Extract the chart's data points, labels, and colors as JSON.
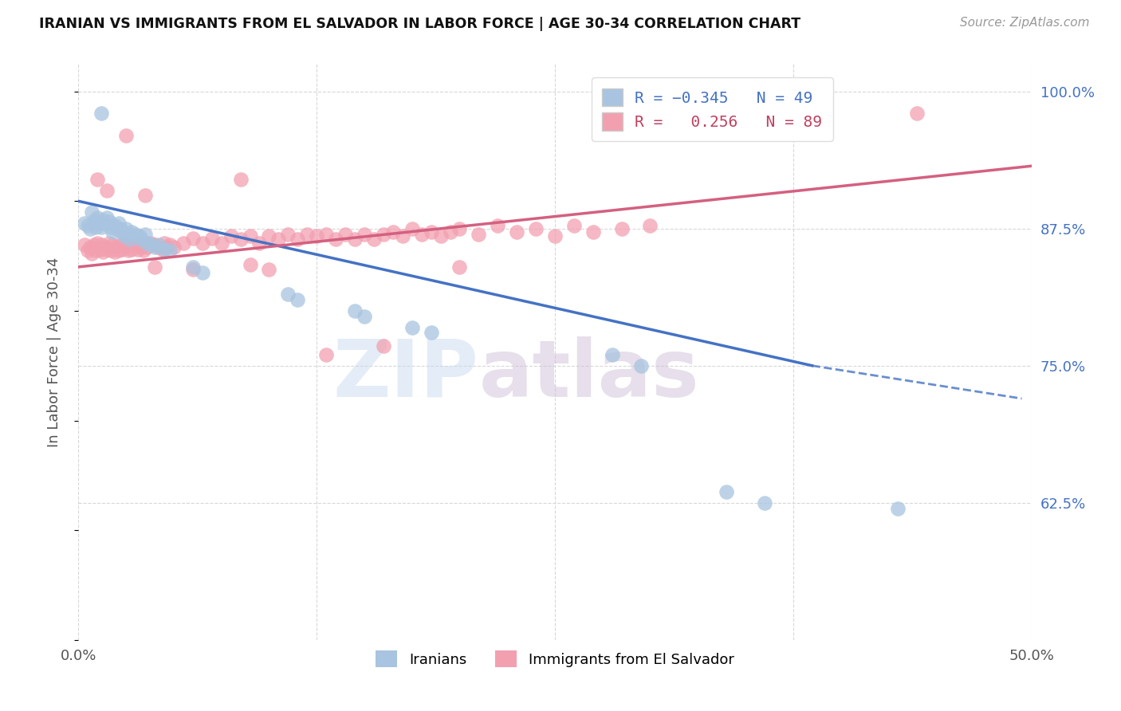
{
  "title": "IRANIAN VS IMMIGRANTS FROM EL SALVADOR IN LABOR FORCE | AGE 30-34 CORRELATION CHART",
  "source": "Source: ZipAtlas.com",
  "ylabel": "In Labor Force | Age 30-34",
  "xlim": [
    0.0,
    0.5
  ],
  "ylim": [
    0.5,
    1.025
  ],
  "xticks": [
    0.0,
    0.1,
    0.2,
    0.3,
    0.4,
    0.5
  ],
  "xticklabels": [
    "0.0%",
    "",
    "",
    "",
    "",
    "50.0%"
  ],
  "yticks_right": [
    0.625,
    0.75,
    0.875,
    1.0
  ],
  "yticklabels_right": [
    "62.5%",
    "75.0%",
    "87.5%",
    "100.0%"
  ],
  "blue_color": "#a8c4e0",
  "pink_color": "#f2a0b0",
  "blue_line_color": "#4472c4",
  "pink_line_color": "#d46080",
  "background_color": "#ffffff",
  "grid_color": "#d8d8d8",
  "blue_scatter": [
    [
      0.003,
      0.88
    ],
    [
      0.005,
      0.878
    ],
    [
      0.006,
      0.875
    ],
    [
      0.007,
      0.89
    ],
    [
      0.008,
      0.882
    ],
    [
      0.009,
      0.876
    ],
    [
      0.01,
      0.885
    ],
    [
      0.011,
      0.88
    ],
    [
      0.012,
      0.876
    ],
    [
      0.013,
      0.883
    ],
    [
      0.014,
      0.879
    ],
    [
      0.015,
      0.885
    ],
    [
      0.016,
      0.881
    ],
    [
      0.017,
      0.876
    ],
    [
      0.018,
      0.872
    ],
    [
      0.019,
      0.878
    ],
    [
      0.02,
      0.875
    ],
    [
      0.021,
      0.88
    ],
    [
      0.022,
      0.875
    ],
    [
      0.023,
      0.872
    ],
    [
      0.024,
      0.868
    ],
    [
      0.025,
      0.875
    ],
    [
      0.026,
      0.87
    ],
    [
      0.027,
      0.865
    ],
    [
      0.028,
      0.872
    ],
    [
      0.03,
      0.87
    ],
    [
      0.032,
      0.868
    ],
    [
      0.033,
      0.865
    ],
    [
      0.035,
      0.87
    ],
    [
      0.036,
      0.862
    ],
    [
      0.038,
      0.86
    ],
    [
      0.04,
      0.858
    ],
    [
      0.042,
      0.86
    ],
    [
      0.045,
      0.856
    ],
    [
      0.048,
      0.855
    ],
    [
      0.012,
      0.98
    ],
    [
      0.06,
      0.84
    ],
    [
      0.065,
      0.835
    ],
    [
      0.11,
      0.815
    ],
    [
      0.115,
      0.81
    ],
    [
      0.145,
      0.8
    ],
    [
      0.15,
      0.795
    ],
    [
      0.175,
      0.785
    ],
    [
      0.185,
      0.78
    ],
    [
      0.28,
      0.76
    ],
    [
      0.295,
      0.75
    ],
    [
      0.34,
      0.635
    ],
    [
      0.36,
      0.625
    ],
    [
      0.43,
      0.62
    ]
  ],
  "pink_scatter": [
    [
      0.003,
      0.86
    ],
    [
      0.005,
      0.855
    ],
    [
      0.006,
      0.858
    ],
    [
      0.007,
      0.852
    ],
    [
      0.008,
      0.86
    ],
    [
      0.009,
      0.855
    ],
    [
      0.01,
      0.862
    ],
    [
      0.011,
      0.856
    ],
    [
      0.012,
      0.86
    ],
    [
      0.013,
      0.854
    ],
    [
      0.014,
      0.858
    ],
    [
      0.015,
      0.856
    ],
    [
      0.016,
      0.862
    ],
    [
      0.017,
      0.855
    ],
    [
      0.018,
      0.86
    ],
    [
      0.019,
      0.854
    ],
    [
      0.02,
      0.858
    ],
    [
      0.021,
      0.855
    ],
    [
      0.022,
      0.86
    ],
    [
      0.023,
      0.856
    ],
    [
      0.024,
      0.862
    ],
    [
      0.025,
      0.858
    ],
    [
      0.026,
      0.855
    ],
    [
      0.027,
      0.86
    ],
    [
      0.028,
      0.856
    ],
    [
      0.03,
      0.862
    ],
    [
      0.031,
      0.856
    ],
    [
      0.032,
      0.86
    ],
    [
      0.033,
      0.858
    ],
    [
      0.034,
      0.855
    ],
    [
      0.035,
      0.862
    ],
    [
      0.036,
      0.858
    ],
    [
      0.038,
      0.862
    ],
    [
      0.04,
      0.86
    ],
    [
      0.042,
      0.858
    ],
    [
      0.044,
      0.856
    ],
    [
      0.045,
      0.862
    ],
    [
      0.046,
      0.858
    ],
    [
      0.048,
      0.86
    ],
    [
      0.05,
      0.858
    ],
    [
      0.055,
      0.862
    ],
    [
      0.06,
      0.866
    ],
    [
      0.065,
      0.862
    ],
    [
      0.07,
      0.866
    ],
    [
      0.075,
      0.862
    ],
    [
      0.08,
      0.868
    ],
    [
      0.085,
      0.865
    ],
    [
      0.09,
      0.868
    ],
    [
      0.095,
      0.862
    ],
    [
      0.1,
      0.868
    ],
    [
      0.105,
      0.865
    ],
    [
      0.11,
      0.87
    ],
    [
      0.115,
      0.865
    ],
    [
      0.12,
      0.87
    ],
    [
      0.125,
      0.868
    ],
    [
      0.13,
      0.87
    ],
    [
      0.135,
      0.865
    ],
    [
      0.14,
      0.87
    ],
    [
      0.145,
      0.865
    ],
    [
      0.15,
      0.87
    ],
    [
      0.155,
      0.865
    ],
    [
      0.16,
      0.87
    ],
    [
      0.165,
      0.872
    ],
    [
      0.17,
      0.868
    ],
    [
      0.175,
      0.875
    ],
    [
      0.18,
      0.87
    ],
    [
      0.185,
      0.872
    ],
    [
      0.19,
      0.868
    ],
    [
      0.195,
      0.872
    ],
    [
      0.2,
      0.875
    ],
    [
      0.21,
      0.87
    ],
    [
      0.22,
      0.878
    ],
    [
      0.23,
      0.872
    ],
    [
      0.24,
      0.875
    ],
    [
      0.25,
      0.868
    ],
    [
      0.26,
      0.878
    ],
    [
      0.27,
      0.872
    ],
    [
      0.285,
      0.875
    ],
    [
      0.3,
      0.878
    ],
    [
      0.01,
      0.92
    ],
    [
      0.025,
      0.96
    ],
    [
      0.015,
      0.91
    ],
    [
      0.035,
      0.905
    ],
    [
      0.085,
      0.92
    ],
    [
      0.04,
      0.84
    ],
    [
      0.06,
      0.838
    ],
    [
      0.09,
      0.842
    ],
    [
      0.1,
      0.838
    ],
    [
      0.13,
      0.76
    ],
    [
      0.16,
      0.768
    ],
    [
      0.2,
      0.84
    ],
    [
      0.44,
      0.98
    ]
  ]
}
